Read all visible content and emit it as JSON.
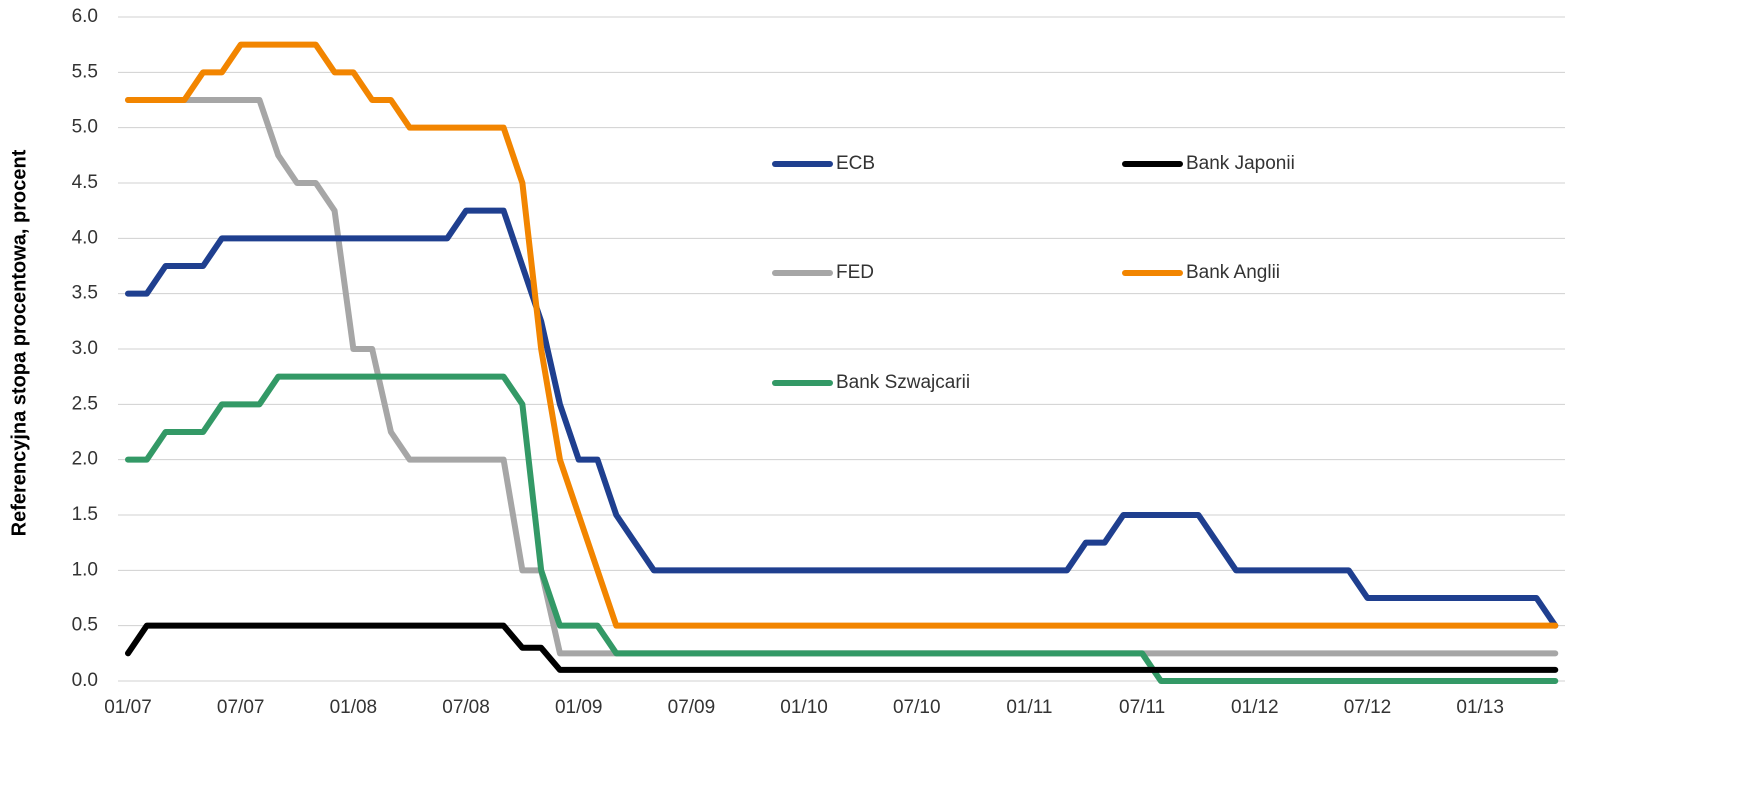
{
  "chart_data": {
    "type": "line",
    "ylabel": "Referencyjna stopa procentowa, procent",
    "categories": [
      "01/07",
      null,
      null,
      null,
      null,
      null,
      "07/07",
      null,
      null,
      null,
      null,
      null,
      "01/08",
      null,
      null,
      null,
      null,
      null,
      "07/08",
      null,
      null,
      null,
      null,
      null,
      "01/09",
      null,
      null,
      null,
      null,
      null,
      "07/09",
      null,
      null,
      null,
      null,
      null,
      "01/10",
      null,
      null,
      null,
      null,
      null,
      "07/10",
      null,
      null,
      null,
      null,
      null,
      "01/11",
      null,
      null,
      null,
      null,
      null,
      "07/11",
      null,
      null,
      null,
      null,
      null,
      "01/12",
      null,
      null,
      null,
      null,
      null,
      "07/12",
      null,
      null,
      null,
      null,
      null,
      "01/13",
      null,
      null,
      null,
      null
    ],
    "series": [
      {
        "name": "ECB",
        "color": "#1f3f8f",
        "values": [
          3.5,
          3.5,
          3.75,
          3.75,
          3.75,
          4,
          4,
          4,
          4,
          4,
          4,
          4,
          4,
          4,
          4,
          4,
          4,
          4,
          4.25,
          4.25,
          4.25,
          3.75,
          3.25,
          2.5,
          2,
          2,
          1.5,
          1.25,
          1,
          1,
          1,
          1,
          1,
          1,
          1,
          1,
          1,
          1,
          1,
          1,
          1,
          1,
          1,
          1,
          1,
          1,
          1,
          1,
          1,
          1,
          1,
          1.25,
          1.25,
          1.5,
          1.5,
          1.5,
          1.5,
          1.5,
          1.25,
          1,
          1,
          1,
          1,
          1,
          1,
          1,
          0.75,
          0.75,
          0.75,
          0.75,
          0.75,
          0.75,
          0.75,
          0.75,
          0.75,
          0.75,
          0.5
        ]
      },
      {
        "name": "Bank Japonii",
        "color": "#000000",
        "values": [
          0.25,
          0.5,
          0.5,
          0.5,
          0.5,
          0.5,
          0.5,
          0.5,
          0.5,
          0.5,
          0.5,
          0.5,
          0.5,
          0.5,
          0.5,
          0.5,
          0.5,
          0.5,
          0.5,
          0.5,
          0.5,
          0.3,
          0.3,
          0.1,
          0.1,
          0.1,
          0.1,
          0.1,
          0.1,
          0.1,
          0.1,
          0.1,
          0.1,
          0.1,
          0.1,
          0.1,
          0.1,
          0.1,
          0.1,
          0.1,
          0.1,
          0.1,
          0.1,
          0.1,
          0.1,
          0.1,
          0.1,
          0.1,
          0.1,
          0.1,
          0.1,
          0.1,
          0.1,
          0.1,
          0.1,
          0.1,
          0.1,
          0.1,
          0.1,
          0.1,
          0.1,
          0.1,
          0.1,
          0.1,
          0.1,
          0.1,
          0.1,
          0.1,
          0.1,
          0.1,
          0.1,
          0.1,
          0.1,
          0.1,
          0.1,
          0.1,
          0.1
        ]
      },
      {
        "name": "FED",
        "color": "#a6a6a6",
        "values": [
          5.25,
          5.25,
          5.25,
          5.25,
          5.25,
          5.25,
          5.25,
          5.25,
          4.75,
          4.5,
          4.5,
          4.25,
          3,
          3,
          2.25,
          2,
          2,
          2,
          2,
          2,
          2,
          1,
          1,
          0.25,
          0.25,
          0.25,
          0.25,
          0.25,
          0.25,
          0.25,
          0.25,
          0.25,
          0.25,
          0.25,
          0.25,
          0.25,
          0.25,
          0.25,
          0.25,
          0.25,
          0.25,
          0.25,
          0.25,
          0.25,
          0.25,
          0.25,
          0.25,
          0.25,
          0.25,
          0.25,
          0.25,
          0.25,
          0.25,
          0.25,
          0.25,
          0.25,
          0.25,
          0.25,
          0.25,
          0.25,
          0.25,
          0.25,
          0.25,
          0.25,
          0.25,
          0.25,
          0.25,
          0.25,
          0.25,
          0.25,
          0.25,
          0.25,
          0.25,
          0.25,
          0.25,
          0.25,
          0.25
        ]
      },
      {
        "name": "Bank Anglii",
        "color": "#f28500",
        "values": [
          5.25,
          5.25,
          5.25,
          5.25,
          5.5,
          5.5,
          5.75,
          5.75,
          5.75,
          5.75,
          5.75,
          5.5,
          5.5,
          5.25,
          5.25,
          5,
          5,
          5,
          5,
          5,
          5,
          4.5,
          3,
          2,
          1.5,
          1,
          0.5,
          0.5,
          0.5,
          0.5,
          0.5,
          0.5,
          0.5,
          0.5,
          0.5,
          0.5,
          0.5,
          0.5,
          0.5,
          0.5,
          0.5,
          0.5,
          0.5,
          0.5,
          0.5,
          0.5,
          0.5,
          0.5,
          0.5,
          0.5,
          0.5,
          0.5,
          0.5,
          0.5,
          0.5,
          0.5,
          0.5,
          0.5,
          0.5,
          0.5,
          0.5,
          0.5,
          0.5,
          0.5,
          0.5,
          0.5,
          0.5,
          0.5,
          0.5,
          0.5,
          0.5,
          0.5,
          0.5,
          0.5,
          0.5,
          0.5,
          0.5
        ]
      },
      {
        "name": "Bank Szwajcarii",
        "color": "#339966",
        "values": [
          2,
          2,
          2.25,
          2.25,
          2.25,
          2.5,
          2.5,
          2.5,
          2.75,
          2.75,
          2.75,
          2.75,
          2.75,
          2.75,
          2.75,
          2.75,
          2.75,
          2.75,
          2.75,
          2.75,
          2.75,
          2.5,
          1,
          0.5,
          0.5,
          0.5,
          0.25,
          0.25,
          0.25,
          0.25,
          0.25,
          0.25,
          0.25,
          0.25,
          0.25,
          0.25,
          0.25,
          0.25,
          0.25,
          0.25,
          0.25,
          0.25,
          0.25,
          0.25,
          0.25,
          0.25,
          0.25,
          0.25,
          0.25,
          0.25,
          0.25,
          0.25,
          0.25,
          0.25,
          0.25,
          0,
          0,
          0,
          0,
          0,
          0,
          0,
          0,
          0,
          0,
          0,
          0,
          0,
          0,
          0,
          0,
          0,
          0,
          0,
          0,
          0,
          0
        ]
      }
    ],
    "ylim": [
      0,
      6
    ],
    "yticks": [
      {
        "value": 0,
        "label": "0.0"
      },
      {
        "value": 0.5,
        "label": "0.5"
      },
      {
        "value": 1,
        "label": "1.0"
      },
      {
        "value": 1.5,
        "label": "1.5"
      },
      {
        "value": 2,
        "label": "2.0"
      },
      {
        "value": 2.5,
        "label": "2.5"
      },
      {
        "value": 3,
        "label": "3.0"
      },
      {
        "value": 3.5,
        "label": "3.5"
      },
      {
        "value": 4,
        "label": "4.0"
      },
      {
        "value": 4.5,
        "label": "4.5"
      },
      {
        "value": 5,
        "label": "5.0"
      },
      {
        "value": 5.5,
        "label": "5.5"
      },
      {
        "value": 6,
        "label": "6.0"
      }
    ],
    "grid": true
  }
}
